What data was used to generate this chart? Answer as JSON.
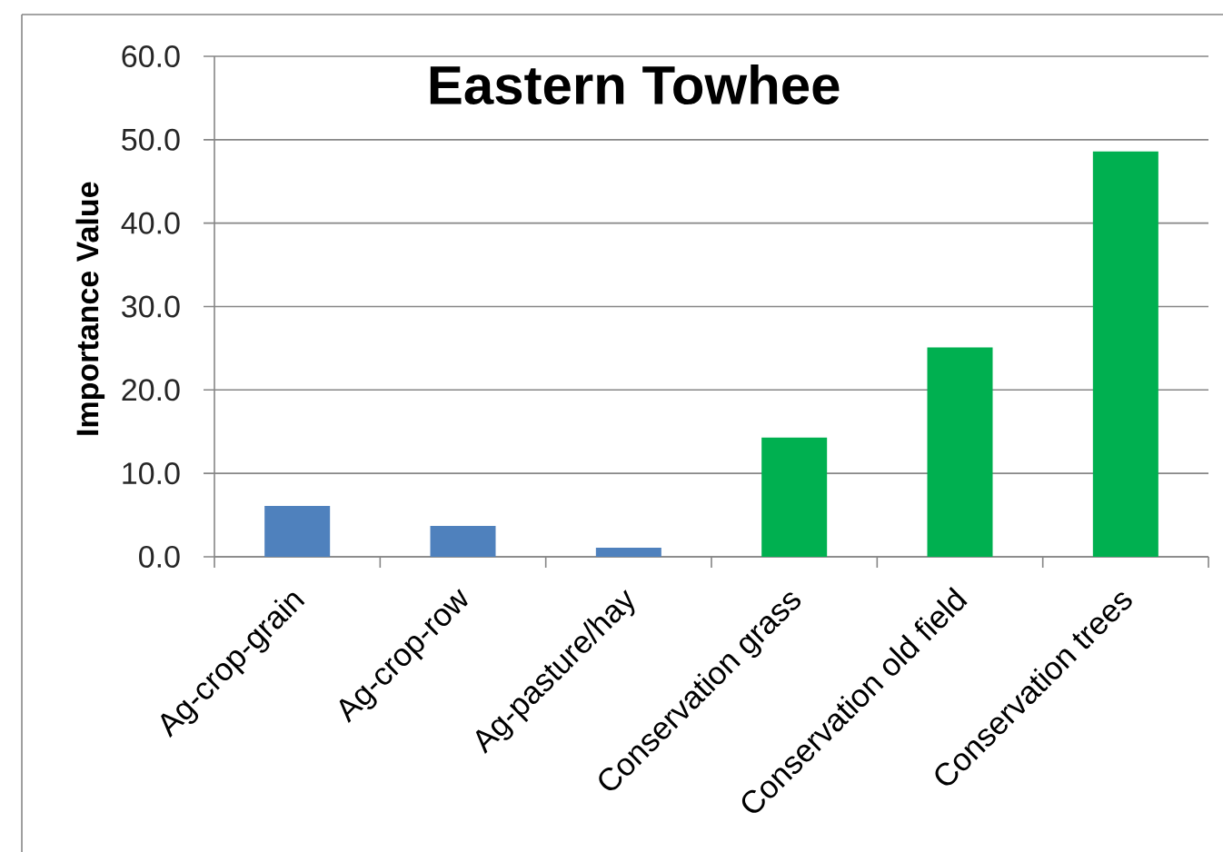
{
  "chart_data": {
    "type": "bar",
    "title": "Eastern Towhee",
    "ylabel": "Importance Value",
    "categories": [
      "Ag-crop-grain",
      "Ag-crop-row",
      "Ag-pasture/hay",
      "Conservation grass",
      "Conservation old field",
      "Conservation trees"
    ],
    "values": [
      6.1,
      3.7,
      1.1,
      14.3,
      25.1,
      48.6
    ],
    "colors": [
      "#4f81bd",
      "#4f81bd",
      "#4f81bd",
      "#00b050",
      "#00b050",
      "#00b050"
    ],
    "ylim": [
      0,
      60
    ],
    "yticks": [
      {
        "value": 0,
        "label": "0.0"
      },
      {
        "value": 10,
        "label": "10.0"
      },
      {
        "value": 20,
        "label": "20.0"
      },
      {
        "value": 30,
        "label": "30.0"
      },
      {
        "value": 40,
        "label": "40.0"
      },
      {
        "value": 50,
        "label": "50.0"
      },
      {
        "value": 60,
        "label": "60.0"
      }
    ],
    "grid": "y"
  }
}
